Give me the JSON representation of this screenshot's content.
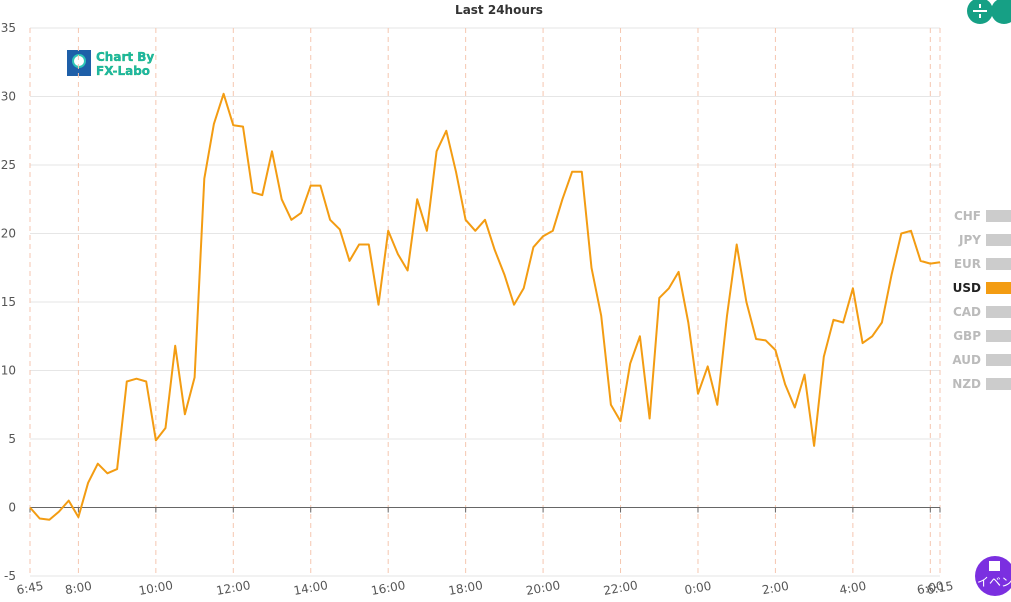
{
  "chart_data": {
    "type": "line",
    "title": "Last 24hours",
    "categories": [
      "6:45",
      null,
      null,
      null,
      null,
      "8:00",
      null,
      null,
      null,
      null,
      null,
      null,
      null,
      "10:00",
      null,
      null,
      null,
      null,
      null,
      null,
      null,
      "12:00",
      null,
      null,
      null,
      null,
      null,
      null,
      null,
      "14:00",
      null,
      null,
      null,
      null,
      null,
      null,
      null,
      "16:00",
      null,
      null,
      null,
      null,
      null,
      null,
      null,
      "18:00",
      null,
      null,
      null,
      null,
      null,
      null,
      null,
      "20:00",
      null,
      null,
      null,
      null,
      null,
      null,
      null,
      "22:00",
      null,
      null,
      null,
      null,
      null,
      null,
      null,
      "0:00",
      null,
      null,
      null,
      null,
      null,
      null,
      null,
      "2:00",
      null,
      null,
      null,
      null,
      null,
      null,
      null,
      "4:00",
      null,
      null,
      null,
      null,
      null,
      null,
      null,
      "6:00",
      "6:15"
    ],
    "series": [
      {
        "name": "USD",
        "color": "#f39c12",
        "values": [
          0,
          -0.8,
          -0.9,
          -0.3,
          0.5,
          -0.7,
          1.8,
          3.2,
          2.5,
          2.8,
          9.2,
          9.4,
          9.2,
          4.9,
          5.8,
          11.8,
          6.8,
          9.5,
          24,
          28,
          30.2,
          27.9,
          27.8,
          23,
          22.8,
          26,
          22.5,
          21,
          21.5,
          23.5,
          23.5,
          21,
          20.3,
          18,
          19.2,
          19.2,
          14.8,
          20.2,
          18.5,
          17.3,
          22.5,
          20.2,
          26,
          27.5,
          24.5,
          21,
          20.2,
          21,
          18.8,
          17,
          14.8,
          16,
          19,
          19.8,
          20.2,
          22.5,
          24.5,
          24.5,
          17.5,
          14,
          7.5,
          6.3,
          10.5,
          12.5,
          6.5,
          15.3,
          16,
          17.2,
          13.5,
          8.3,
          10.3,
          7.5,
          14,
          19.2,
          15,
          12.3,
          12.2,
          11.5,
          9,
          7.3,
          9.7,
          4.5,
          11,
          13.7,
          13.5,
          16,
          12,
          12.5,
          13.5,
          17,
          20,
          20.2,
          18,
          17.8,
          17.9
        ]
      }
    ],
    "ylim": [
      -5,
      35
    ],
    "yticks": [
      -5,
      0,
      5,
      10,
      15,
      20,
      25,
      30,
      35
    ],
    "grid": true,
    "legend": [
      {
        "name": "CHF",
        "color": "#cccccc"
      },
      {
        "name": "JPY",
        "color": "#cccccc"
      },
      {
        "name": "EUR",
        "color": "#cccccc"
      },
      {
        "name": "USD",
        "color": "#f39c12"
      },
      {
        "name": "CAD",
        "color": "#cccccc"
      },
      {
        "name": "GBP",
        "color": "#cccccc"
      },
      {
        "name": "AUD",
        "color": "#cccccc"
      },
      {
        "name": "NZD",
        "color": "#cccccc"
      }
    ],
    "logo": [
      "Chart By",
      "FX-Labo"
    ],
    "button_label": "イベン"
  }
}
